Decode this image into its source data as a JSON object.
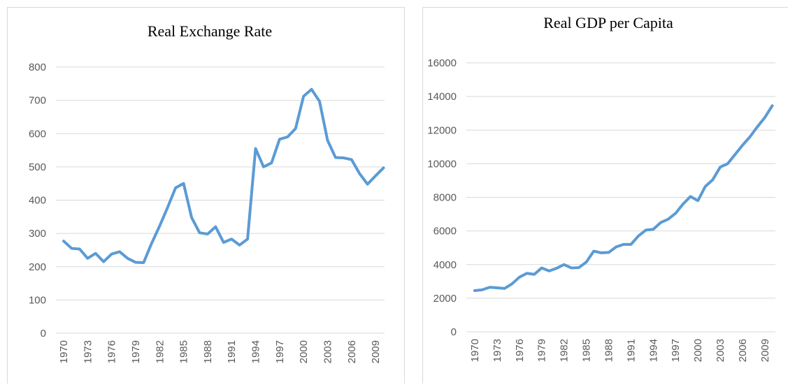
{
  "chart_data": [
    {
      "type": "line",
      "title": "Real Exchange Rate",
      "categories": [
        "1970",
        null,
        null,
        "1973",
        null,
        null,
        "1976",
        null,
        null,
        "1979",
        null,
        null,
        "1982",
        null,
        null,
        "1985",
        null,
        null,
        "1988",
        null,
        null,
        "1991",
        null,
        null,
        "1994",
        null,
        null,
        "1997",
        null,
        null,
        "2000",
        null,
        null,
        "2003",
        null,
        null,
        "2006",
        null,
        null,
        "2009",
        null
      ],
      "series": [
        {
          "name": "Real Exchange Rate",
          "color": "#5b9bd5",
          "values": [
            277,
            255,
            253,
            225,
            240,
            215,
            238,
            245,
            225,
            213,
            212,
            270,
            322,
            378,
            437,
            450,
            348,
            302,
            298,
            320,
            273,
            283,
            265,
            283,
            555,
            500,
            512,
            583,
            590,
            615,
            712,
            733,
            697,
            580,
            528,
            527,
            522,
            480,
            448,
            473,
            497
          ]
        }
      ],
      "ylim": [
        0,
        800
      ],
      "yticks": [
        0,
        100,
        200,
        300,
        400,
        500,
        600,
        700,
        800
      ],
      "grid": true
    },
    {
      "type": "line",
      "title": "Real GDP per Capita",
      "categories": [
        "1970",
        null,
        null,
        "1973",
        null,
        null,
        "1976",
        null,
        null,
        "1979",
        null,
        null,
        "1982",
        null,
        null,
        "1985",
        null,
        null,
        "1988",
        null,
        null,
        "1991",
        null,
        null,
        "1994",
        null,
        null,
        "1997",
        null,
        null,
        "2000",
        null,
        null,
        "2003",
        null,
        null,
        "2006",
        null,
        null,
        "2009",
        null
      ],
      "series": [
        {
          "name": "Real GDP per Capita",
          "color": "#5b9bd5",
          "values": [
            2450,
            2500,
            2650,
            2620,
            2580,
            2850,
            3250,
            3480,
            3420,
            3800,
            3620,
            3780,
            4000,
            3800,
            3820,
            4150,
            4800,
            4700,
            4720,
            5050,
            5200,
            5200,
            5700,
            6050,
            6100,
            6500,
            6700,
            7050,
            7600,
            8050,
            7800,
            8650,
            9050,
            9800,
            10000,
            10550,
            11100,
            11600,
            12200,
            12750,
            13450
          ]
        }
      ],
      "ylim": [
        0,
        16000
      ],
      "yticks": [
        0,
        2000,
        4000,
        6000,
        8000,
        10000,
        12000,
        14000,
        16000
      ],
      "grid": true
    }
  ]
}
